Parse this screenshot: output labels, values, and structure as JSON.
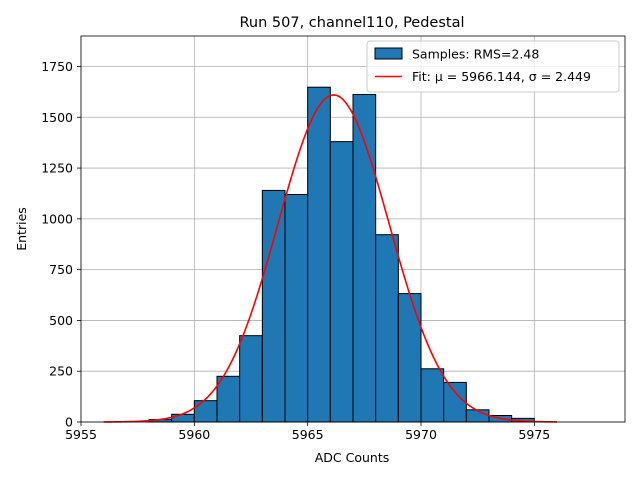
{
  "chart_data": {
    "type": "bar",
    "title": "Run 507, channel110, Pedestal",
    "xlabel": "ADC Counts",
    "ylabel": "Entries",
    "xlim": [
      5955,
      5979
    ],
    "ylim": [
      0,
      1900
    ],
    "xticks": [
      5955,
      5960,
      5965,
      5970,
      5975
    ],
    "yticks": [
      0,
      250,
      500,
      750,
      1000,
      1250,
      1500,
      1750
    ],
    "grid": true,
    "legend_position": "top-right",
    "series": [
      {
        "name": "Samples: RMS=2.48",
        "kind": "histogram",
        "color": "#1f77b4",
        "edge_color": "#000000",
        "bins": [
          {
            "left": 5958,
            "right": 5959,
            "value": 12
          },
          {
            "left": 5959,
            "right": 5960,
            "value": 38
          },
          {
            "left": 5960,
            "right": 5961,
            "value": 105
          },
          {
            "left": 5961,
            "right": 5962,
            "value": 225
          },
          {
            "left": 5962,
            "right": 5963,
            "value": 425
          },
          {
            "left": 5963,
            "right": 5964,
            "value": 1140
          },
          {
            "left": 5964,
            "right": 5965,
            "value": 1120
          },
          {
            "left": 5965,
            "right": 5966,
            "value": 1648
          },
          {
            "left": 5966,
            "right": 5967,
            "value": 1380
          },
          {
            "left": 5967,
            "right": 5968,
            "value": 1612
          },
          {
            "left": 5968,
            "right": 5969,
            "value": 922
          },
          {
            "left": 5969,
            "right": 5970,
            "value": 632
          },
          {
            "left": 5970,
            "right": 5971,
            "value": 262
          },
          {
            "left": 5971,
            "right": 5972,
            "value": 195
          },
          {
            "left": 5972,
            "right": 5973,
            "value": 60
          },
          {
            "left": 5973,
            "right": 5974,
            "value": 32
          },
          {
            "left": 5974,
            "right": 5975,
            "value": 18
          }
        ]
      },
      {
        "name": "Fit: μ = 5966.144, σ = 2.449",
        "kind": "line",
        "color": "#ff0000",
        "gaussian": {
          "mu": 5966.144,
          "sigma": 2.449,
          "amplitude": 1610
        },
        "x_range": [
          5956,
          5976
        ]
      }
    ]
  }
}
